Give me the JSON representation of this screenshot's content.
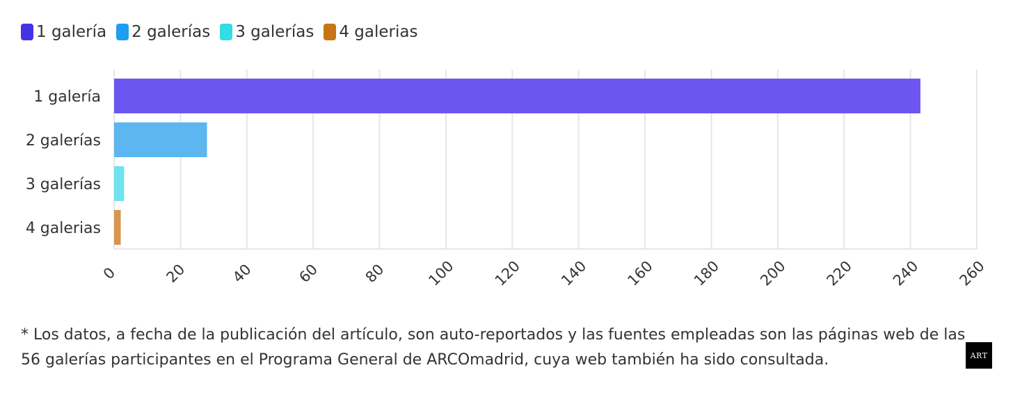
{
  "legend": [
    {
      "label": "1 galería",
      "color": "#4335e6"
    },
    {
      "label": "2 galerías",
      "color": "#1e9ef0"
    },
    {
      "label": "3 galerías",
      "color": "#33dce6"
    },
    {
      "label": "4 galerias",
      "color": "#c97515"
    }
  ],
  "chart_data": {
    "type": "bar",
    "orientation": "horizontal",
    "categories": [
      "1 galería",
      "2 galerías",
      "3 galerías",
      "4 galerias"
    ],
    "values": [
      243,
      28,
      3,
      2
    ],
    "colors": [
      "#6c56ef",
      "#5db6f0",
      "#6fe3ee",
      "#d99450"
    ],
    "xlim": [
      0,
      260
    ],
    "xticks": [
      "0",
      "20",
      "40",
      "60",
      "80",
      "100",
      "120",
      "140",
      "160",
      "180",
      "200",
      "220",
      "240",
      "260"
    ],
    "title": "",
    "xlabel": "",
    "ylabel": "",
    "grid": true,
    "legend_position": "top-left"
  },
  "footnote": "* Los datos, a fecha de la publicación del artículo, son auto-reportados y las fuentes empleadas son las páginas web de las 56 galerías participantes en el Programa General de ARCOmadrid, cuya web también ha sido consultada.",
  "logo": {
    "text": "ART"
  }
}
